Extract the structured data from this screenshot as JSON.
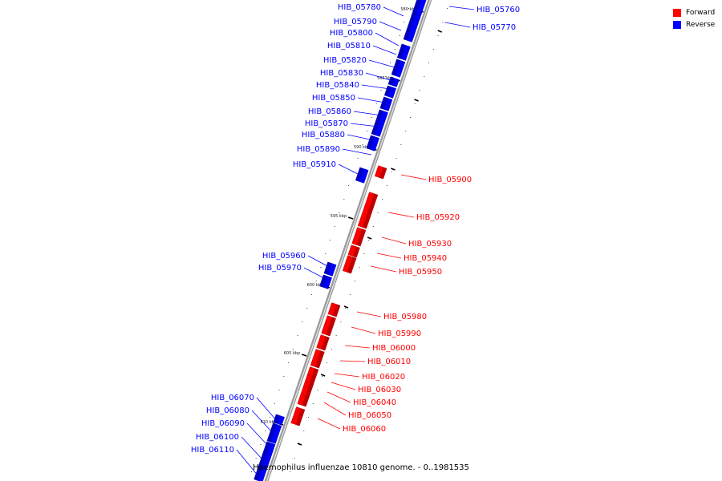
{
  "legend": {
    "forward_label": "Forward",
    "reverse_label": "Reverse",
    "forward_color": "#ff0000",
    "reverse_color": "#0000ff"
  },
  "footer": {
    "title": "Haemophilus influenzae 10810 genome. - 0..1981535"
  },
  "ticks": [
    {
      "label": "580 kbp"
    },
    {
      "label": "585 kbp"
    },
    {
      "label": "590 kbp"
    },
    {
      "label": "595 kbp"
    },
    {
      "label": "600 kbp"
    },
    {
      "label": "605 kbp"
    },
    {
      "label": "610 kbp"
    }
  ],
  "genes": [
    {
      "name": "HIB_05760",
      "strand": "reverse"
    },
    {
      "name": "HIB_05770",
      "strand": "reverse"
    },
    {
      "name": "HIB_05780",
      "strand": "reverse"
    },
    {
      "name": "HIB_05790",
      "strand": "reverse"
    },
    {
      "name": "HIB_05800",
      "strand": "reverse"
    },
    {
      "name": "HIB_05810",
      "strand": "reverse"
    },
    {
      "name": "HIB_05820",
      "strand": "reverse"
    },
    {
      "name": "HIB_05830",
      "strand": "reverse"
    },
    {
      "name": "HIB_05840",
      "strand": "reverse"
    },
    {
      "name": "HIB_05850",
      "strand": "reverse"
    },
    {
      "name": "HIB_05860",
      "strand": "reverse"
    },
    {
      "name": "HIB_05870",
      "strand": "reverse"
    },
    {
      "name": "HIB_05880",
      "strand": "reverse"
    },
    {
      "name": "HIB_05890",
      "strand": "reverse"
    },
    {
      "name": "HIB_05910",
      "strand": "reverse"
    },
    {
      "name": "HIB_05900",
      "strand": "forward"
    },
    {
      "name": "HIB_05920",
      "strand": "forward"
    },
    {
      "name": "HIB_05930",
      "strand": "forward"
    },
    {
      "name": "HIB_05940",
      "strand": "forward"
    },
    {
      "name": "HIB_05950",
      "strand": "forward"
    },
    {
      "name": "HIB_05960",
      "strand": "reverse"
    },
    {
      "name": "HIB_05970",
      "strand": "reverse"
    },
    {
      "name": "HIB_05980",
      "strand": "forward"
    },
    {
      "name": "HIB_05990",
      "strand": "forward"
    },
    {
      "name": "HIB_06000",
      "strand": "forward"
    },
    {
      "name": "HIB_06010",
      "strand": "forward"
    },
    {
      "name": "HIB_06020",
      "strand": "forward"
    },
    {
      "name": "HIB_06030",
      "strand": "forward"
    },
    {
      "name": "HIB_06040",
      "strand": "forward"
    },
    {
      "name": "HIB_06050",
      "strand": "forward"
    },
    {
      "name": "HIB_06060",
      "strand": "forward"
    },
    {
      "name": "HIB_06070",
      "strand": "reverse"
    },
    {
      "name": "HIB_06080",
      "strand": "reverse"
    },
    {
      "name": "HIB_06090",
      "strand": "reverse"
    },
    {
      "name": "HIB_06100",
      "strand": "reverse"
    },
    {
      "name": "HIB_06110",
      "strand": "reverse"
    }
  ]
}
